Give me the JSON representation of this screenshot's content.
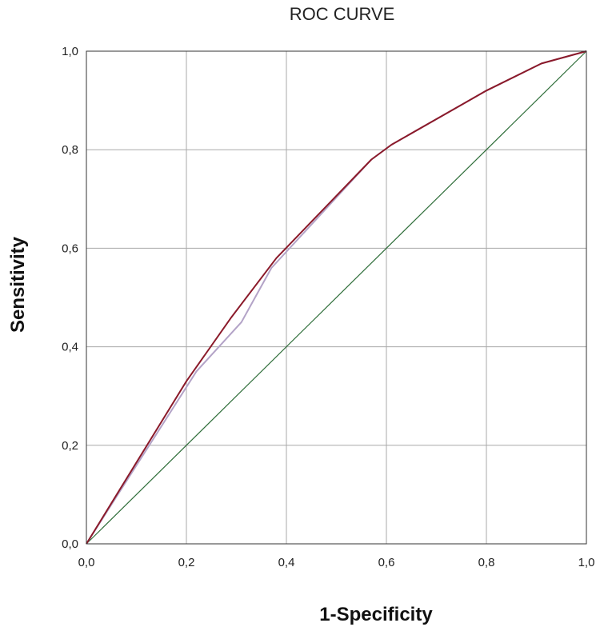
{
  "chart_data": {
    "type": "line",
    "title": "ROC CURVE",
    "xlabel": "1-Specificity",
    "ylabel": "Sensitivity",
    "xlim": [
      0,
      1
    ],
    "ylim": [
      0,
      1
    ],
    "x_ticks": [
      "0,0",
      "0,2",
      "0,4",
      "0,6",
      "0,8",
      "1,0"
    ],
    "y_ticks": [
      "0,0",
      "0,2",
      "0,4",
      "0,6",
      "0,8",
      "1,0"
    ],
    "grid": true,
    "series": [
      {
        "color": "#8b1a2a",
        "points": [
          [
            0,
            0
          ],
          [
            0.2,
            0.33
          ],
          [
            0.29,
            0.46
          ],
          [
            0.38,
            0.58
          ],
          [
            0.57,
            0.78
          ],
          [
            0.61,
            0.81
          ],
          [
            0.8,
            0.92
          ],
          [
            0.91,
            0.975
          ],
          [
            1,
            1
          ]
        ]
      },
      {
        "color": "#b3a3c7",
        "points": [
          [
            0,
            0
          ],
          [
            0.22,
            0.35
          ],
          [
            0.31,
            0.45
          ],
          [
            0.37,
            0.56
          ],
          [
            0.57,
            0.78
          ],
          [
            0.61,
            0.81
          ],
          [
            0.8,
            0.92
          ],
          [
            0.91,
            0.975
          ],
          [
            1,
            1
          ]
        ]
      },
      {
        "color": "#2f6e3a",
        "points": [
          [
            0,
            0
          ],
          [
            1,
            1
          ]
        ]
      }
    ]
  }
}
